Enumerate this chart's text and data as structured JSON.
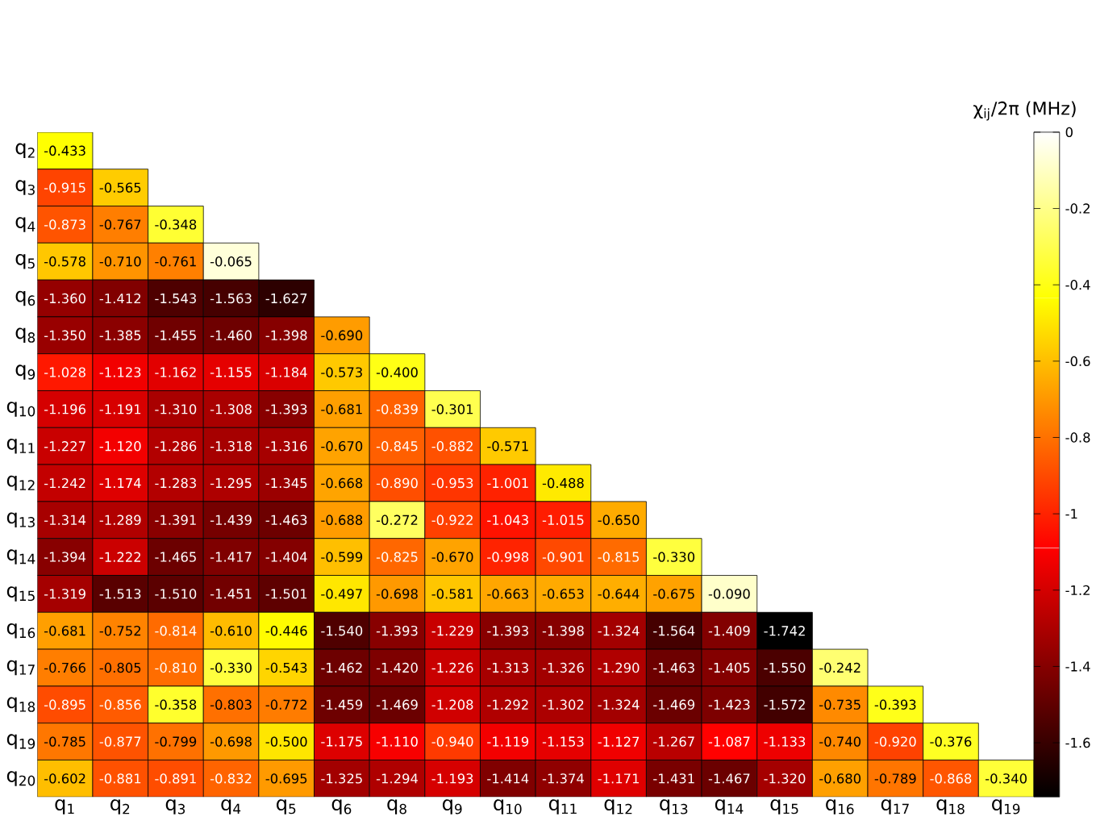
{
  "chart_data": {
    "type": "heatmap",
    "clabel": "χ$_{ij}$/2π (MHz)",
    "categories": [
      "q$_{1}$",
      "q$_{2}$",
      "q$_{3}$",
      "q$_{4}$",
      "q$_{5}$",
      "q$_{6}$",
      "q$_{8}$",
      "q$_{9}$",
      "q$_{10}$",
      "q$_{11}$",
      "q$_{12}$",
      "q$_{13}$",
      "q$_{14}$",
      "q$_{15}$",
      "q$_{16}$",
      "q$_{17}$",
      "q$_{18}$",
      "q$_{19}$"
    ],
    "y_categories": [
      "q$_{2}$",
      "q$_{3}$",
      "q$_{4}$",
      "q$_{5}$",
      "q$_{6}$",
      "q$_{8}$",
      "q$_{9}$",
      "q$_{10}$",
      "q$_{11}$",
      "q$_{12}$",
      "q$_{13}$",
      "q$_{14}$",
      "q$_{15}$",
      "q$_{16}$",
      "q$_{17}$",
      "q$_{18}$",
      "q$_{19}$",
      "q$_{20}$"
    ],
    "cells": [
      [
        -0.433,
        null,
        null,
        null,
        null,
        null,
        null,
        null,
        null,
        null,
        null,
        null,
        null,
        null,
        null,
        null,
        null,
        null
      ],
      [
        -0.915,
        -0.565,
        null,
        null,
        null,
        null,
        null,
        null,
        null,
        null,
        null,
        null,
        null,
        null,
        null,
        null,
        null,
        null
      ],
      [
        -0.873,
        -0.767,
        -0.348,
        null,
        null,
        null,
        null,
        null,
        null,
        null,
        null,
        null,
        null,
        null,
        null,
        null,
        null,
        null
      ],
      [
        -0.578,
        -0.71,
        -0.761,
        -0.065,
        null,
        null,
        null,
        null,
        null,
        null,
        null,
        null,
        null,
        null,
        null,
        null,
        null,
        null
      ],
      [
        -1.36,
        -1.412,
        -1.543,
        -1.563,
        -1.627,
        null,
        null,
        null,
        null,
        null,
        null,
        null,
        null,
        null,
        null,
        null,
        null,
        null
      ],
      [
        -1.35,
        -1.385,
        -1.455,
        -1.46,
        -1.398,
        -0.69,
        null,
        null,
        null,
        null,
        null,
        null,
        null,
        null,
        null,
        null,
        null,
        null
      ],
      [
        -1.028,
        -1.123,
        -1.162,
        -1.155,
        -1.184,
        -0.573,
        -0.4,
        null,
        null,
        null,
        null,
        null,
        null,
        null,
        null,
        null,
        null,
        null
      ],
      [
        -1.196,
        -1.191,
        -1.31,
        -1.308,
        -1.393,
        -0.681,
        -0.839,
        -0.301,
        null,
        null,
        null,
        null,
        null,
        null,
        null,
        null,
        null,
        null
      ],
      [
        -1.227,
        -1.12,
        -1.286,
        -1.318,
        -1.316,
        -0.67,
        -0.845,
        -0.882,
        -0.571,
        null,
        null,
        null,
        null,
        null,
        null,
        null,
        null,
        null
      ],
      [
        -1.242,
        -1.174,
        -1.283,
        -1.295,
        -1.345,
        -0.668,
        -0.89,
        -0.953,
        -1.001,
        -0.488,
        null,
        null,
        null,
        null,
        null,
        null,
        null,
        null
      ],
      [
        -1.314,
        -1.289,
        -1.391,
        -1.439,
        -1.463,
        -0.688,
        -0.272,
        -0.922,
        -1.043,
        -1.015,
        -0.65,
        null,
        null,
        null,
        null,
        null,
        null,
        null
      ],
      [
        -1.394,
        -1.222,
        -1.465,
        -1.417,
        -1.404,
        -0.599,
        -0.825,
        -0.67,
        -0.998,
        -0.901,
        -0.815,
        -0.33,
        null,
        null,
        null,
        null,
        null,
        null
      ],
      [
        -1.319,
        -1.513,
        -1.51,
        -1.451,
        -1.501,
        -0.497,
        -0.698,
        -0.581,
        -0.663,
        -0.653,
        -0.644,
        -0.675,
        -0.09,
        null,
        null,
        null,
        null,
        null
      ],
      [
        -0.681,
        -0.752,
        -0.814,
        -0.61,
        -0.446,
        -1.54,
        -1.393,
        -1.229,
        -1.393,
        -1.398,
        -1.324,
        -1.564,
        -1.409,
        -1.742,
        null,
        null,
        null,
        null
      ],
      [
        -0.766,
        -0.805,
        -0.81,
        -0.33,
        -0.543,
        -1.462,
        -1.42,
        -1.226,
        -1.313,
        -1.326,
        -1.29,
        -1.463,
        -1.405,
        -1.55,
        -0.242,
        null,
        null,
        null
      ],
      [
        -0.895,
        -0.856,
        -0.358,
        -0.803,
        -0.772,
        -1.459,
        -1.469,
        -1.208,
        -1.292,
        -1.302,
        -1.324,
        -1.469,
        -1.423,
        -1.572,
        -0.735,
        -0.393,
        null,
        null
      ],
      [
        -0.785,
        -0.877,
        -0.799,
        -0.698,
        -0.5,
        -1.175,
        -1.11,
        -0.94,
        -1.119,
        -1.153,
        -1.127,
        -1.267,
        -1.087,
        -1.133,
        -0.74,
        -0.92,
        -0.376,
        null
      ],
      [
        -0.602,
        -0.881,
        -0.891,
        -0.832,
        -0.695,
        -1.325,
        -1.294,
        -1.193,
        -1.414,
        -1.374,
        -1.171,
        -1.431,
        -1.467,
        -1.32,
        -0.68,
        -0.789,
        -0.868,
        -0.34
      ]
    ],
    "cell_labels": [
      [
        "-0.433",
        null,
        null,
        null,
        null,
        null,
        null,
        null,
        null,
        null,
        null,
        null,
        null,
        null,
        null,
        null,
        null,
        null
      ],
      [
        "-0.915",
        "-0.565",
        null,
        null,
        null,
        null,
        null,
        null,
        null,
        null,
        null,
        null,
        null,
        null,
        null,
        null,
        null,
        null
      ],
      [
        "-0.873",
        "-0.767",
        "-0.348",
        null,
        null,
        null,
        null,
        null,
        null,
        null,
        null,
        null,
        null,
        null,
        null,
        null,
        null,
        null
      ],
      [
        "-0.578",
        "-0.710",
        "-0.761",
        "-0.065",
        null,
        null,
        null,
        null,
        null,
        null,
        null,
        null,
        null,
        null,
        null,
        null,
        null,
        null
      ],
      [
        "-1.360",
        "-1.412",
        "-1.543",
        "-1.563",
        "-1.627",
        null,
        null,
        null,
        null,
        null,
        null,
        null,
        null,
        null,
        null,
        null,
        null,
        null
      ],
      [
        "-1.350",
        "-1.385",
        "-1.455",
        "-1.460",
        "-1.398",
        "-0.690",
        null,
        null,
        null,
        null,
        null,
        null,
        null,
        null,
        null,
        null,
        null,
        null
      ],
      [
        "-1.028",
        "-1.123",
        "-1.162",
        "-1.155",
        "-1.184",
        "-0.573",
        "-0.400",
        null,
        null,
        null,
        null,
        null,
        null,
        null,
        null,
        null,
        null,
        null
      ],
      [
        "-1.196",
        "-1.191",
        "-1.310",
        "-1.308",
        "-1.393",
        "-0.681",
        "-0.839",
        "-0.301",
        null,
        null,
        null,
        null,
        null,
        null,
        null,
        null,
        null,
        null
      ],
      [
        "-1.227",
        "-1.120",
        "-1.286",
        "-1.318",
        "-1.316",
        "-0.670",
        "-0.845",
        "-0.882",
        "-0.571",
        null,
        null,
        null,
        null,
        null,
        null,
        null,
        null,
        null
      ],
      [
        "-1.242",
        "-1.174",
        "-1.283",
        "-1.295",
        "-1.345",
        "-0.668",
        "-0.890",
        "-0.953",
        "-1.001",
        "-0.488",
        null,
        null,
        null,
        null,
        null,
        null,
        null,
        null
      ],
      [
        "-1.314",
        "-1.289",
        "-1.391",
        "-1.439",
        "-1.463",
        "-0.688",
        "-0.272",
        "-0.922",
        "-1.043",
        "-1.015",
        "-0.650",
        null,
        null,
        null,
        null,
        null,
        null,
        null
      ],
      [
        "-1.394",
        "-1.222",
        "-1.465",
        "-1.417",
        "-1.404",
        "-0.599",
        "-0.825",
        "-0.670",
        "-0.998",
        "-0.901",
        "-0.815",
        "-0.330",
        null,
        null,
        null,
        null,
        null,
        null
      ],
      [
        "-1.319",
        "-1.513",
        "-1.510",
        "-1.451",
        "-1.501",
        "-0.497",
        "-0.698",
        "-0.581",
        "-0.663",
        "-0.653",
        "-0.644",
        "-0.675",
        "-0.090",
        null,
        null,
        null,
        null,
        null
      ],
      [
        "-0.681",
        "-0.752",
        "-0.814",
        "-0.610",
        "-0.446",
        "-1.540",
        "-1.393",
        "-1.229",
        "-1.393",
        "-1.398",
        "-1.324",
        "-1.564",
        "-1.409",
        "-1.742",
        null,
        null,
        null,
        null
      ],
      [
        "-0.766",
        "-0.805",
        "-0.810",
        "-0.330",
        "-0.543",
        "-1.462",
        "-1.420",
        "-1.226",
        "-1.313",
        "-1.326",
        "-1.290",
        "-1.463",
        "-1.405",
        "-1.550",
        "-0.242",
        null,
        null,
        null
      ],
      [
        "-0.895",
        "-0.856",
        "-0.358",
        "-0.803",
        "-0.772",
        "-1.459",
        "-1.469",
        "-1.208",
        "-1.292",
        "-1.302",
        "-1.324",
        "-1.469",
        "-1.423",
        "-1.572",
        "-0.735",
        "-0.393",
        null,
        null
      ],
      [
        "-0.785",
        "-0.877",
        "-0.799",
        "-0.698",
        "-0.500",
        "-1.175",
        "-1.110",
        "-0.940",
        "-1.119",
        "-1.153",
        "-1.127",
        "-1.267",
        "-1.087",
        "-1.133",
        "-0.740",
        "-0.920",
        "-0.376",
        null
      ],
      [
        "-0.602",
        "-0.881",
        "-0.891",
        "-0.832",
        "-0.695",
        "-1.325",
        "-1.294",
        "-1.193",
        "-1.414",
        "-1.374",
        "-1.171",
        "-1.431",
        "-1.467",
        "-1.320",
        "-0.680",
        "-0.789",
        "-0.868",
        "-0.340"
      ]
    ],
    "clim": [
      -1.742,
      0
    ],
    "cticks": [
      0,
      -0.2,
      -0.4,
      -0.6,
      -0.8,
      -1,
      -1.2,
      -1.4,
      -1.6
    ]
  }
}
